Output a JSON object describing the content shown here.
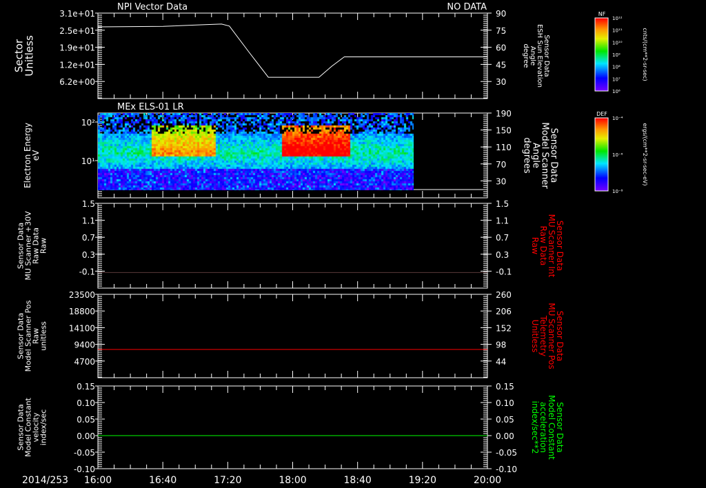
{
  "time_axis": {
    "date_label": "2014/253",
    "ticks": [
      "16:00",
      "16:40",
      "17:20",
      "18:00",
      "18:40",
      "19:20",
      "20:00"
    ],
    "range_hours": [
      16,
      20
    ]
  },
  "chart_data": [
    {
      "type": "line",
      "title": "NPI Vector Data",
      "status": "NO DATA",
      "ylabel_left": [
        "Sector",
        "Unitless"
      ],
      "ylabel_right": [
        "Sensor Data",
        "ESH Sun Elevation",
        "Angle",
        "degree"
      ],
      "left_ticks": [
        "3.1e+01",
        "2.5e+01",
        "1.9e+01",
        "1.2e+01",
        "6.2e+00"
      ],
      "ylim": [
        1.3,
        31
      ],
      "right_ticks": [
        "90",
        "75",
        "60",
        "45",
        "30"
      ],
      "series": [
        {
          "name": "Sector",
          "color": "#ffffff",
          "x": [
            16.0,
            16.67,
            17.1,
            17.27,
            17.35,
            17.55,
            17.75,
            18.27,
            18.4,
            18.53,
            20.0
          ],
          "y": [
            26.2,
            26.4,
            27.0,
            27.2,
            26.5,
            17.5,
            8.7,
            8.7,
            12.5,
            15.8,
            15.8
          ]
        }
      ]
    },
    {
      "type": "heatmap",
      "title": "MEx ELS-01 LR",
      "ylabel_left": [
        "Electron Energy",
        "eV"
      ],
      "left_ticks": [
        "10²",
        "10¹"
      ],
      "ylabel_right": [
        "Sensor Data",
        "Model Scanner",
        "Angle",
        "degrees"
      ],
      "right_ticks": [
        "190",
        "150",
        "110",
        "70",
        "30"
      ],
      "data_end_hour": 19.25,
      "features": [
        {
          "from": 16.55,
          "to": 17.2,
          "level": "high-mid"
        },
        {
          "from": 17.88,
          "to": 18.58,
          "level": "very-high"
        }
      ],
      "colorbar": {
        "label": "DEF",
        "units": "ergs/(cm**2-sr-sec-eV)",
        "ticks": [
          "10⁻⁴",
          "10⁻⁶",
          "10⁻⁸"
        ]
      }
    },
    {
      "type": "line",
      "ylabel_left": [
        "Sensor Data",
        "MU Scanner +30V",
        "Raw Data",
        "Raw"
      ],
      "left_ticks": [
        "1.5",
        "1.1",
        "0.7",
        "0.3",
        "-0.1"
      ],
      "ylabel_right": [
        "Sensor Data",
        "MU Scanner Int",
        "Raw Data",
        "Raw"
      ],
      "right_ticks": [
        "1.5",
        "1.1",
        "0.7",
        "0.3",
        "-0.1"
      ],
      "ylim": [
        -0.4,
        1.5
      ],
      "series": [
        {
          "name": "MU Scanner",
          "color": "#5a3a3a",
          "x": [
            16,
            20
          ],
          "y": [
            -0.05,
            -0.05
          ]
        }
      ]
    },
    {
      "type": "line",
      "ylabel_left": [
        "Sensor Data",
        "Model Scanner Pos",
        "Raw",
        "unitless"
      ],
      "left_ticks": [
        "23500",
        "18800",
        "14100",
        "9400",
        "4700"
      ],
      "ylabel_right": [
        "Sensor Data",
        "MU Scanner Pos",
        "Telemetry",
        "Unitless"
      ],
      "right_ticks": [
        "260",
        "206",
        "152",
        "98",
        "44"
      ],
      "ylim": [
        0,
        23500
      ],
      "series": [
        {
          "name": "Scanner Pos",
          "color": "#ff0000",
          "x": [
            16,
            20
          ],
          "y": [
            7960,
            7960
          ]
        }
      ]
    },
    {
      "type": "line",
      "ylabel_left": [
        "Sensor Data",
        "Model Constant",
        "velocity",
        "index/sec"
      ],
      "left_ticks": [
        "0.15",
        "0.10",
        "0.05",
        "0.00",
        "-0.05",
        "-0.10"
      ],
      "ylabel_right": [
        "Sensor Data",
        "Model Constant",
        "acceleration",
        "index/sec**2"
      ],
      "right_ticks": [
        "0.15",
        "0.10",
        "0.05",
        "0.00",
        "-0.05",
        "-0.10"
      ],
      "ylim": [
        -0.1,
        0.15
      ],
      "series": [
        {
          "name": "velocity",
          "color": "#00ff00",
          "x": [
            16,
            20
          ],
          "y": [
            0,
            0
          ]
        }
      ]
    }
  ],
  "colorbar_nf": {
    "label": "NF",
    "units": "cnts/(cm**2-sr-sec)",
    "ticks": [
      "10¹²",
      "10¹¹",
      "10¹⁰",
      "10⁹",
      "10⁸",
      "10⁷",
      "10⁶"
    ]
  },
  "colors": {
    "right_label_red": "#ff0000",
    "right_label_green": "#00ff00"
  }
}
